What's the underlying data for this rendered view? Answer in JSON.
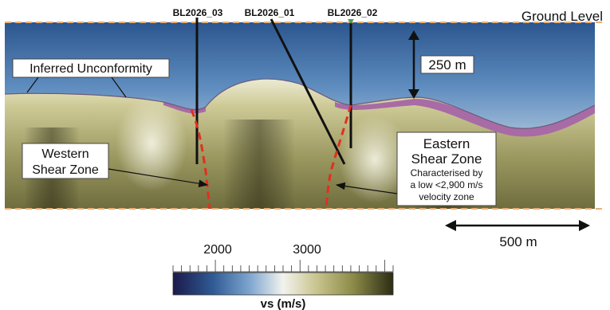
{
  "labels": {
    "boreholes": [
      "BL2026_03",
      "BL2026_01",
      "BL2026_02"
    ],
    "ground_level": "Ground Level",
    "inferred_unconformity": "Inferred Unconformity",
    "depth_scale": "250 m",
    "western_line1": "Western",
    "western_line2": "Shear Zone",
    "eastern_line1": "Eastern",
    "eastern_line2": "Shear Zone",
    "eastern_note_line1": "Characterised by",
    "eastern_note_line2": "a low <2,900 m/s",
    "eastern_note_line3": "velocity zone",
    "horizontal_scale": "500 m"
  },
  "colorbar": {
    "tick_label_1": "2000",
    "tick_label_2": "3000",
    "title": "vs (m/s)",
    "colors": [
      "#1b1a4a",
      "#2f5a94",
      "#7fa6cf",
      "#f2f3ee",
      "#c9c58f",
      "#8c8a48",
      "#2b2c14"
    ]
  },
  "colors": {
    "unconformity_band": "#a86ba6",
    "shear_zone_line": "#e0301e",
    "ground_level_line": "#e8b07a",
    "borehole_line": "#111111"
  }
}
